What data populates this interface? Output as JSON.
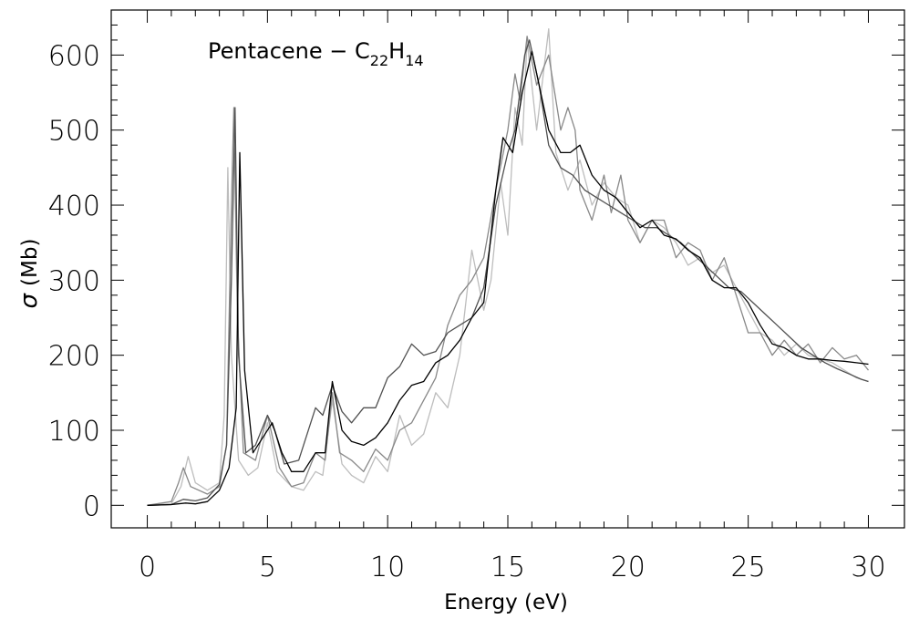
{
  "chart_data": {
    "type": "line",
    "title": "Pentacene − C",
    "title_sub1": "22",
    "title_mid": "H",
    "title_sub2": "14",
    "xlabel": "Energy (eV)",
    "ylabel_symbol": "σ",
    "ylabel_unit": "(Mb)",
    "xlim": [
      -1.5,
      31.5
    ],
    "ylim": [
      -30,
      660
    ],
    "xticks": [
      0,
      5,
      10,
      15,
      20,
      25,
      30
    ],
    "yticks": [
      0,
      100,
      200,
      300,
      400,
      500,
      600
    ],
    "grid": false,
    "legend": "none",
    "series": [
      {
        "color": "#bdbdbd",
        "points": [
          [
            0,
            0
          ],
          [
            1,
            2
          ],
          [
            1.4,
            25
          ],
          [
            1.7,
            65
          ],
          [
            2,
            30
          ],
          [
            2.5,
            20
          ],
          [
            3,
            30
          ],
          [
            3.2,
            120
          ],
          [
            3.35,
            450
          ],
          [
            3.5,
            200
          ],
          [
            3.8,
            60
          ],
          [
            4.2,
            40
          ],
          [
            4.6,
            50
          ],
          [
            5,
            110
          ],
          [
            5.4,
            45
          ],
          [
            6,
            25
          ],
          [
            6.5,
            20
          ],
          [
            7,
            45
          ],
          [
            7.3,
            40
          ],
          [
            7.7,
            140
          ],
          [
            8.1,
            55
          ],
          [
            8.5,
            40
          ],
          [
            9,
            30
          ],
          [
            9.5,
            65
          ],
          [
            10,
            45
          ],
          [
            10.5,
            120
          ],
          [
            11,
            80
          ],
          [
            11.5,
            95
          ],
          [
            12,
            150
          ],
          [
            12.5,
            130
          ],
          [
            13,
            200
          ],
          [
            13.5,
            340
          ],
          [
            14,
            260
          ],
          [
            14.3,
            300
          ],
          [
            14.7,
            430
          ],
          [
            15,
            360
          ],
          [
            15.3,
            530
          ],
          [
            15.6,
            480
          ],
          [
            15.8,
            620
          ],
          [
            16.2,
            500
          ],
          [
            16.7,
            635
          ],
          [
            17,
            470
          ],
          [
            17.5,
            420
          ],
          [
            18,
            460
          ],
          [
            18.5,
            400
          ],
          [
            19,
            430
          ],
          [
            19.5,
            410
          ],
          [
            20,
            400
          ],
          [
            20.5,
            350
          ],
          [
            21,
            380
          ],
          [
            21.5,
            370
          ],
          [
            22,
            350
          ],
          [
            22.5,
            320
          ],
          [
            23,
            330
          ],
          [
            23.5,
            310
          ],
          [
            24,
            320
          ],
          [
            24.5,
            290
          ],
          [
            25,
            260
          ],
          [
            25.5,
            230
          ],
          [
            26,
            220
          ],
          [
            26.5,
            200
          ],
          [
            27,
            215
          ],
          [
            27.5,
            200
          ],
          [
            28,
            195
          ],
          [
            28.5,
            190
          ],
          [
            29,
            180
          ],
          [
            29.5,
            170
          ],
          [
            30,
            165
          ]
        ]
      },
      {
        "color": "#888888",
        "points": [
          [
            0,
            0
          ],
          [
            1,
            5
          ],
          [
            1.3,
            30
          ],
          [
            1.5,
            50
          ],
          [
            1.8,
            25
          ],
          [
            2.5,
            15
          ],
          [
            3,
            25
          ],
          [
            3.3,
            80
          ],
          [
            3.5,
            400
          ],
          [
            3.6,
            530
          ],
          [
            3.75,
            250
          ],
          [
            4,
            70
          ],
          [
            4.5,
            60
          ],
          [
            5,
            120
          ],
          [
            5.5,
            50
          ],
          [
            6,
            25
          ],
          [
            6.5,
            30
          ],
          [
            7,
            70
          ],
          [
            7.4,
            60
          ],
          [
            7.7,
            150
          ],
          [
            8,
            70
          ],
          [
            8.5,
            60
          ],
          [
            9,
            45
          ],
          [
            9.5,
            75
          ],
          [
            10,
            60
          ],
          [
            10.5,
            100
          ],
          [
            11,
            110
          ],
          [
            11.5,
            140
          ],
          [
            12,
            170
          ],
          [
            12.5,
            240
          ],
          [
            13,
            280
          ],
          [
            13.5,
            300
          ],
          [
            14,
            330
          ],
          [
            14.5,
            420
          ],
          [
            15,
            500
          ],
          [
            15.3,
            575
          ],
          [
            15.5,
            540
          ],
          [
            15.8,
            625
          ],
          [
            16.2,
            560
          ],
          [
            16.7,
            600
          ],
          [
            17.2,
            500
          ],
          [
            17.5,
            530
          ],
          [
            17.8,
            500
          ],
          [
            18,
            420
          ],
          [
            18.5,
            380
          ],
          [
            19,
            440
          ],
          [
            19.3,
            390
          ],
          [
            19.7,
            440
          ],
          [
            20,
            380
          ],
          [
            20.5,
            350
          ],
          [
            21,
            380
          ],
          [
            21.5,
            380
          ],
          [
            22,
            330
          ],
          [
            22.5,
            350
          ],
          [
            23,
            340
          ],
          [
            23.5,
            300
          ],
          [
            24,
            330
          ],
          [
            24.3,
            300
          ],
          [
            24.7,
            260
          ],
          [
            25,
            230
          ],
          [
            25.5,
            230
          ],
          [
            26,
            200
          ],
          [
            26.5,
            220
          ],
          [
            27,
            200
          ],
          [
            27.5,
            215
          ],
          [
            28,
            190
          ],
          [
            28.5,
            210
          ],
          [
            29,
            195
          ],
          [
            29.5,
            200
          ],
          [
            30,
            180
          ]
        ]
      },
      {
        "color": "#505050",
        "points": [
          [
            0,
            0
          ],
          [
            1,
            1
          ],
          [
            1.5,
            8
          ],
          [
            2,
            6
          ],
          [
            2.5,
            10
          ],
          [
            3,
            28
          ],
          [
            3.3,
            80
          ],
          [
            3.5,
            300
          ],
          [
            3.65,
            530
          ],
          [
            3.8,
            200
          ],
          [
            4.1,
            70
          ],
          [
            4.5,
            80
          ],
          [
            5,
            120
          ],
          [
            5.3,
            100
          ],
          [
            5.7,
            55
          ],
          [
            6.3,
            60
          ],
          [
            7,
            130
          ],
          [
            7.3,
            120
          ],
          [
            7.7,
            160
          ],
          [
            8.1,
            125
          ],
          [
            8.5,
            110
          ],
          [
            9,
            130
          ],
          [
            9.5,
            130
          ],
          [
            10,
            170
          ],
          [
            10.5,
            185
          ],
          [
            11,
            215
          ],
          [
            11.5,
            200
          ],
          [
            12,
            205
          ],
          [
            12.5,
            230
          ],
          [
            13,
            240
          ],
          [
            13.5,
            250
          ],
          [
            14,
            290
          ],
          [
            14.5,
            400
          ],
          [
            15,
            470
          ],
          [
            15.3,
            500
          ],
          [
            15.7,
            600
          ],
          [
            15.9,
            620
          ],
          [
            16.3,
            560
          ],
          [
            16.7,
            480
          ],
          [
            17.2,
            450
          ],
          [
            17.7,
            440
          ],
          [
            18.2,
            420
          ],
          [
            18.7,
            410
          ],
          [
            19.2,
            400
          ],
          [
            19.7,
            390
          ],
          [
            20.2,
            380
          ],
          [
            20.7,
            370
          ],
          [
            21.2,
            370
          ],
          [
            21.7,
            360
          ],
          [
            22.2,
            350
          ],
          [
            22.7,
            335
          ],
          [
            23.2,
            320
          ],
          [
            23.7,
            305
          ],
          [
            24.2,
            290
          ],
          [
            24.7,
            285
          ],
          [
            25.2,
            270
          ],
          [
            25.7,
            255
          ],
          [
            26.2,
            240
          ],
          [
            26.7,
            225
          ],
          [
            27.2,
            210
          ],
          [
            27.7,
            200
          ],
          [
            28.2,
            190
          ],
          [
            28.7,
            182
          ],
          [
            29.2,
            175
          ],
          [
            29.7,
            168
          ],
          [
            30,
            165
          ]
        ]
      },
      {
        "color": "#000000",
        "points": [
          [
            0,
            0
          ],
          [
            1,
            1
          ],
          [
            1.6,
            3
          ],
          [
            2,
            2
          ],
          [
            2.5,
            5
          ],
          [
            3,
            20
          ],
          [
            3.4,
            50
          ],
          [
            3.7,
            130
          ],
          [
            3.85,
            470
          ],
          [
            4.05,
            180
          ],
          [
            4.4,
            70
          ],
          [
            4.8,
            90
          ],
          [
            5.2,
            110
          ],
          [
            5.6,
            70
          ],
          [
            6,
            45
          ],
          [
            6.5,
            45
          ],
          [
            7,
            70
          ],
          [
            7.4,
            70
          ],
          [
            7.7,
            165
          ],
          [
            8.1,
            100
          ],
          [
            8.5,
            85
          ],
          [
            9,
            80
          ],
          [
            9.5,
            90
          ],
          [
            10,
            110
          ],
          [
            10.5,
            140
          ],
          [
            11,
            160
          ],
          [
            11.5,
            165
          ],
          [
            12,
            190
          ],
          [
            12.5,
            200
          ],
          [
            13,
            220
          ],
          [
            13.5,
            250
          ],
          [
            14,
            270
          ],
          [
            14.5,
            420
          ],
          [
            14.8,
            490
          ],
          [
            15.2,
            470
          ],
          [
            15.6,
            550
          ],
          [
            16,
            605
          ],
          [
            16.3,
            560
          ],
          [
            16.7,
            500
          ],
          [
            17.2,
            470
          ],
          [
            17.6,
            470
          ],
          [
            18,
            480
          ],
          [
            18.5,
            440
          ],
          [
            19,
            420
          ],
          [
            19.5,
            410
          ],
          [
            20,
            390
          ],
          [
            20.5,
            370
          ],
          [
            21,
            380
          ],
          [
            21.5,
            360
          ],
          [
            22,
            355
          ],
          [
            22.5,
            340
          ],
          [
            23,
            330
          ],
          [
            23.5,
            300
          ],
          [
            24,
            290
          ],
          [
            24.5,
            290
          ],
          [
            25,
            270
          ],
          [
            25.5,
            240
          ],
          [
            26,
            215
          ],
          [
            26.5,
            210
          ],
          [
            27,
            200
          ],
          [
            27.5,
            195
          ],
          [
            28,
            195
          ],
          [
            28.5,
            193
          ],
          [
            29,
            192
          ],
          [
            29.5,
            190
          ],
          [
            30,
            188
          ]
        ]
      }
    ]
  }
}
